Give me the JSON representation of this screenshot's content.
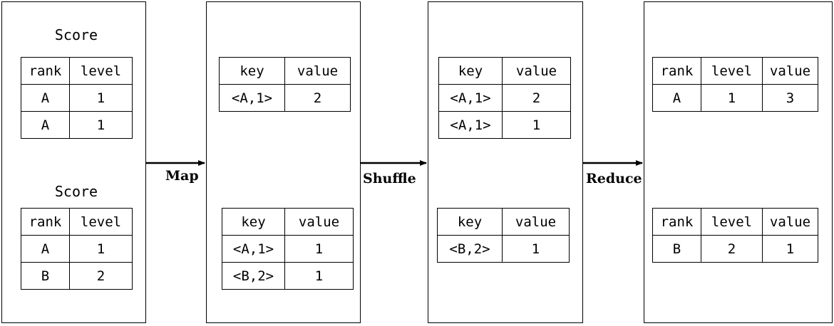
{
  "stages": [
    {
      "tables": [
        {
          "caption": "Score",
          "header": [
            "rank",
            "level"
          ],
          "rows": [
            [
              "A",
              "1"
            ],
            [
              "A",
              "1"
            ]
          ]
        },
        {
          "caption": "Score",
          "header": [
            "rank",
            "level"
          ],
          "rows": [
            [
              "A",
              "1"
            ],
            [
              "B",
              "2"
            ]
          ]
        }
      ]
    },
    {
      "tables": [
        {
          "header": [
            "key",
            "value"
          ],
          "rows": [
            [
              "<A,1>",
              "2"
            ]
          ]
        },
        {
          "header": [
            "key",
            "value"
          ],
          "rows": [
            [
              "<A,1>",
              "1"
            ],
            [
              "<B,2>",
              "1"
            ]
          ]
        }
      ]
    },
    {
      "tables": [
        {
          "header": [
            "key",
            "value"
          ],
          "rows": [
            [
              "<A,1>",
              "2"
            ],
            [
              "<A,1>",
              "1"
            ]
          ]
        },
        {
          "header": [
            "key",
            "value"
          ],
          "rows": [
            [
              "<B,2>",
              "1"
            ]
          ]
        }
      ]
    },
    {
      "tables": [
        {
          "header": [
            "rank",
            "level",
            "value"
          ],
          "rows": [
            [
              "A",
              "1",
              "3"
            ]
          ]
        },
        {
          "header": [
            "rank",
            "level",
            "value"
          ],
          "rows": [
            [
              "B",
              "2",
              "1"
            ]
          ]
        }
      ]
    }
  ],
  "arrows": [
    {
      "label": "Map"
    },
    {
      "label": "Shuffle"
    },
    {
      "label": "Reduce"
    }
  ]
}
